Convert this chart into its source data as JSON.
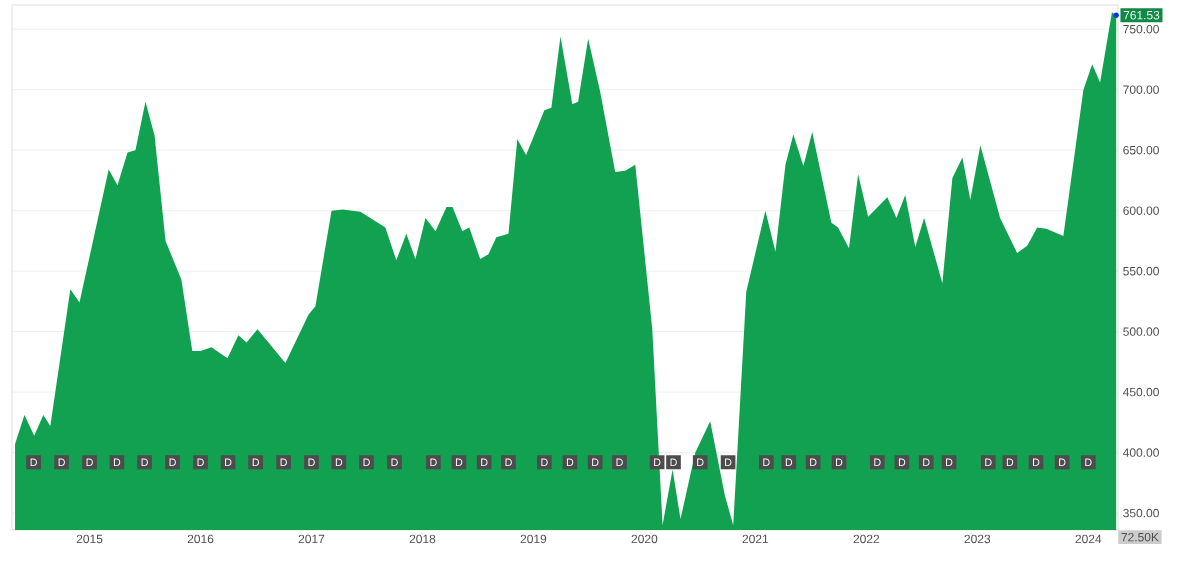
{
  "chart_data": {
    "type": "area",
    "x": [
      "2014-05-01",
      "2014-06-01",
      "2014-07-03",
      "2014-08-02",
      "2014-08-25",
      "2014-10-30",
      "2014-11-29",
      "2015-03-05",
      "2015-04-03",
      "2015-05-06",
      "2015-06-01",
      "2015-07-04",
      "2015-08-03",
      "2015-09-08",
      "2015-10-30",
      "2015-12-05",
      "2016-01-01",
      "2016-02-06",
      "2016-03-30",
      "2016-05-05",
      "2016-06-01",
      "2016-07-07",
      "2016-10-07",
      "2016-12-22",
      "2017-01-14",
      "2017-03-08",
      "2017-04-13",
      "2017-06-11",
      "2017-09-01",
      "2017-10-07",
      "2017-11-09",
      "2017-12-09",
      "2018-01-11",
      "2018-02-13",
      "2018-03-21",
      "2018-04-10",
      "2018-05-12",
      "2018-06-04",
      "2018-07-10",
      "2018-08-06",
      "2018-09-01",
      "2018-10-11",
      "2018-11-09",
      "2018-12-08",
      "2019-02-06",
      "2019-03-01",
      "2019-03-31",
      "2019-05-09",
      "2019-05-28",
      "2019-06-30",
      "2019-08-08",
      "2019-09-27",
      "2019-10-30",
      "2019-12-02",
      "2020-01-27",
      "2020-02-16",
      "2020-03-01",
      "2020-04-03",
      "2020-04-29",
      "2020-06-17",
      "2020-08-05",
      "2020-09-23",
      "2020-10-20",
      "2020-12-02",
      "2021-02-03",
      "2021-03-08",
      "2021-04-10",
      "2021-05-06",
      "2021-06-08",
      "2021-07-07",
      "2021-09-08",
      "2021-09-30",
      "2021-11-05",
      "2021-12-05",
      "2022-01-07",
      "2022-03-11",
      "2022-04-10",
      "2022-05-09",
      "2022-06-11",
      "2022-07-10",
      "2022-09-08",
      "2022-10-11",
      "2022-11-13",
      "2022-12-09",
      "2023-01-11",
      "2023-03-17",
      "2023-05-12",
      "2023-06-14",
      "2023-07-17",
      "2023-08-16",
      "2023-10-11",
      "2023-12-16",
      "2024-01-14",
      "2024-02-09",
      "2024-03-19",
      "2024-04-02"
    ],
    "series": [
      {
        "color": "#12a150",
        "values": [
          407,
          431,
          414,
          431,
          422,
          535,
          524,
          634,
          621,
          648,
          650,
          690,
          662,
          575,
          543,
          484,
          484,
          487,
          478,
          497,
          491,
          502,
          474,
          514,
          521,
          600,
          601,
          599,
          586,
          559,
          581,
          560,
          594,
          583,
          603,
          603,
          583,
          586,
          560,
          564,
          578,
          581,
          659,
          646,
          683,
          685,
          744,
          688,
          690,
          742,
          699,
          632,
          633,
          638,
          502,
          406,
          340,
          386,
          345,
          400,
          426,
          364,
          340,
          533,
          600,
          566,
          638,
          663,
          637,
          665,
          590,
          586,
          569,
          630,
          595,
          611,
          594,
          613,
          570,
          594,
          540,
          627,
          644,
          609,
          654,
          594,
          565,
          571,
          586,
          585,
          579,
          700,
          721,
          706,
          764,
          761.53
        ],
        "value_labels": [
          null,
          null,
          null,
          null,
          null,
          null,
          null,
          null,
          null,
          null,
          null,
          null,
          null,
          null,
          null,
          null,
          null,
          null,
          null,
          null,
          null,
          null,
          null,
          null,
          null,
          null,
          null,
          null,
          null,
          null,
          null,
          null,
          null,
          null,
          null,
          null,
          null,
          null,
          null,
          null,
          null,
          null,
          null,
          null,
          null,
          null,
          null,
          null,
          null,
          null,
          null,
          null,
          null,
          null,
          null,
          null,
          null,
          null,
          null,
          null,
          null,
          null,
          null,
          null,
          null,
          null,
          null,
          null,
          null,
          null,
          null,
          null,
          null,
          null,
          null,
          null,
          null,
          null,
          null,
          null,
          null,
          null,
          null,
          null,
          null,
          null,
          null,
          null,
          null,
          null,
          null,
          null,
          null,
          null,
          null,
          "761.53"
        ]
      }
    ],
    "xlim": [
      "2014-04-21",
      "2024-04-08"
    ],
    "xticks": [
      "2015",
      "2016",
      "2017",
      "2018",
      "2019",
      "2020",
      "2021",
      "2022",
      "2023",
      "2024"
    ],
    "ylim": [
      336,
      770
    ],
    "yticks": [
      {
        "value": 350,
        "label": "350.00"
      },
      {
        "value": 400,
        "label": "400.00"
      },
      {
        "value": 450,
        "label": "450.00"
      },
      {
        "value": 500,
        "label": "500.00"
      },
      {
        "value": 550,
        "label": "550.00"
      },
      {
        "value": 600,
        "label": "600.00"
      },
      {
        "value": 650,
        "label": "650.00"
      },
      {
        "value": 700,
        "label": "700.00"
      },
      {
        "value": 750,
        "label": "750.00"
      }
    ],
    "grid": "y",
    "annotations": [
      {
        "text": "D",
        "x": "2014-07-01",
        "y": 392
      },
      {
        "text": "D",
        "x": "2014-10-01",
        "y": 392
      },
      {
        "text": "D",
        "x": "2015-01-01",
        "y": 392
      },
      {
        "text": "D",
        "x": "2015-04-01",
        "y": 392
      },
      {
        "text": "D",
        "x": "2015-07-01",
        "y": 392
      },
      {
        "text": "D",
        "x": "2015-10-01",
        "y": 392
      },
      {
        "text": "D",
        "x": "2016-01-01",
        "y": 392
      },
      {
        "text": "D",
        "x": "2016-04-01",
        "y": 392
      },
      {
        "text": "D",
        "x": "2016-07-01",
        "y": 392
      },
      {
        "text": "D",
        "x": "2016-10-01",
        "y": 392
      },
      {
        "text": "D",
        "x": "2017-01-01",
        "y": 392
      },
      {
        "text": "D",
        "x": "2017-04-01",
        "y": 392
      },
      {
        "text": "D",
        "x": "2017-07-01",
        "y": 392
      },
      {
        "text": "D",
        "x": "2017-10-01",
        "y": 392
      },
      {
        "text": "D",
        "x": "2018-02-06",
        "y": 392
      },
      {
        "text": "D",
        "x": "2018-05-01",
        "y": 392
      },
      {
        "text": "D",
        "x": "2018-07-23",
        "y": 392
      },
      {
        "text": "D",
        "x": "2018-10-11",
        "y": 392
      },
      {
        "text": "D",
        "x": "2019-02-06",
        "y": 392
      },
      {
        "text": "D",
        "x": "2019-05-01",
        "y": 392
      },
      {
        "text": "D",
        "x": "2019-07-23",
        "y": 392
      },
      {
        "text": "D",
        "x": "2019-10-11",
        "y": 392
      },
      {
        "text": "D",
        "x": "2020-02-12",
        "y": 392
      },
      {
        "text": "D",
        "x": "2020-04-06",
        "y": 392
      },
      {
        "text": "D",
        "x": "2020-07-03",
        "y": 392
      },
      {
        "text": "D",
        "x": "2020-10-03",
        "y": 392
      },
      {
        "text": "D",
        "x": "2021-02-06",
        "y": 392
      },
      {
        "text": "D",
        "x": "2021-04-21",
        "y": 392
      },
      {
        "text": "D",
        "x": "2021-07-10",
        "y": 392
      },
      {
        "text": "D",
        "x": "2021-10-03",
        "y": 392
      },
      {
        "text": "D",
        "x": "2022-02-06",
        "y": 392
      },
      {
        "text": "D",
        "x": "2022-04-28",
        "y": 392
      },
      {
        "text": "D",
        "x": "2022-07-17",
        "y": 392
      },
      {
        "text": "D",
        "x": "2022-09-30",
        "y": 392
      },
      {
        "text": "D",
        "x": "2023-02-06",
        "y": 392
      },
      {
        "text": "D",
        "x": "2023-04-18",
        "y": 392
      },
      {
        "text": "D",
        "x": "2023-07-13",
        "y": 392
      },
      {
        "text": "D",
        "x": "2023-10-07",
        "y": 392
      },
      {
        "text": "D",
        "x": "2024-01-01",
        "y": 392
      },
      "72.50K"
    ]
  }
}
